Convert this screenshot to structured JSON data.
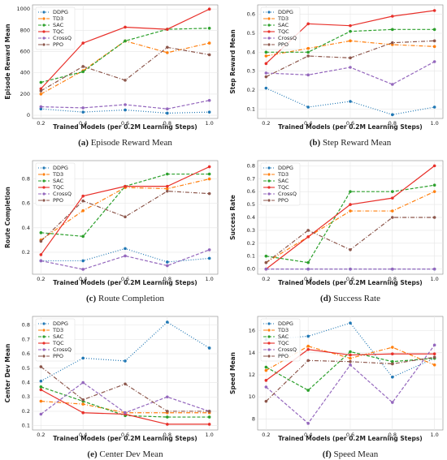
{
  "chart_data": [
    {
      "type": "line",
      "caption_label": "(a)",
      "caption": "Episode Reward Mean",
      "ylabel": "Episode Reward Mean",
      "xlabel": "Trained Models (per 0.2M Learning Steps)",
      "x": [
        0.2,
        0.4,
        0.6,
        0.8,
        1.0
      ],
      "xlim": [
        0.16,
        1.04
      ],
      "xticks": [
        0.2,
        0.4,
        0.6,
        0.8,
        {
          "value": 1.0,
          "label": "1.0"
        }
      ],
      "ylim": [
        -30,
        1040
      ],
      "yticks": [
        0,
        200,
        400,
        600,
        800,
        1000
      ],
      "grid": true,
      "legend": "upper left",
      "series": [
        {
          "name": "DDPG",
          "color": "#1f77b4",
          "linestyle": "dotted",
          "values": [
            60,
            30,
            50,
            20,
            30
          ]
        },
        {
          "name": "TD3",
          "color": "#ff7f0e",
          "linestyle": "dashdot",
          "values": [
            200,
            420,
            700,
            590,
            680
          ]
        },
        {
          "name": "SAC",
          "color": "#2ca02c",
          "linestyle": "dashed",
          "values": [
            310,
            410,
            700,
            810,
            820
          ]
        },
        {
          "name": "TQC",
          "color": "#e8302a",
          "linestyle": "solid",
          "values": [
            250,
            680,
            830,
            810,
            1000
          ]
        },
        {
          "name": "CrossQ",
          "color": "#9467bd",
          "linestyle": "dashed",
          "values": [
            80,
            70,
            100,
            60,
            140
          ]
        },
        {
          "name": "PPO",
          "color": "#8c564b",
          "linestyle": "dashdot",
          "values": [
            230,
            460,
            330,
            640,
            570
          ]
        }
      ]
    },
    {
      "type": "line",
      "caption_label": "(b)",
      "caption": "Step Reward Mean",
      "ylabel": "Step Reward Mean",
      "xlabel": "Trained Models (per 0.2M Learning Steps)",
      "x": [
        0.2,
        0.4,
        0.6,
        0.8,
        1.0
      ],
      "xlim": [
        0.16,
        1.04
      ],
      "xticks": [
        0.2,
        0.4,
        0.6,
        0.8,
        {
          "value": 1.0,
          "label": "1.0"
        }
      ],
      "ylim": [
        0.05,
        0.65
      ],
      "yticks": [
        0.1,
        0.2,
        0.3,
        0.4,
        0.5,
        0.6
      ],
      "grid": true,
      "legend": "upper left",
      "series": [
        {
          "name": "DDPG",
          "color": "#1f77b4",
          "linestyle": "dotted",
          "values": [
            0.21,
            0.11,
            0.14,
            0.07,
            0.11
          ]
        },
        {
          "name": "TD3",
          "color": "#ff7f0e",
          "linestyle": "dashdot",
          "values": [
            0.38,
            0.42,
            0.46,
            0.44,
            0.43
          ]
        },
        {
          "name": "SAC",
          "color": "#2ca02c",
          "linestyle": "dashed",
          "values": [
            0.4,
            0.4,
            0.51,
            0.52,
            0.52
          ]
        },
        {
          "name": "TQC",
          "color": "#e8302a",
          "linestyle": "solid",
          "values": [
            0.34,
            0.55,
            0.54,
            0.59,
            0.62
          ]
        },
        {
          "name": "CrossQ",
          "color": "#9467bd",
          "linestyle": "dashed",
          "values": [
            0.29,
            0.28,
            0.32,
            0.23,
            0.35
          ]
        },
        {
          "name": "PPO",
          "color": "#8c564b",
          "linestyle": "dashdot",
          "values": [
            0.27,
            0.38,
            0.37,
            0.45,
            0.46
          ]
        }
      ]
    },
    {
      "type": "line",
      "caption_label": "(c)",
      "caption": "Route Completion",
      "ylabel": "Route Completion",
      "xlabel": "Trained Models (per 0.2M Learning Steps)",
      "x": [
        0.2,
        0.4,
        0.6,
        0.8,
        1.0
      ],
      "xlim": [
        0.16,
        1.04
      ],
      "xticks": [
        0.2,
        0.4,
        0.6,
        0.8,
        {
          "value": 1.0,
          "label": "1.0"
        }
      ],
      "ylim": [
        0.02,
        0.95
      ],
      "yticks": [
        0.2,
        0.4,
        0.6,
        0.8
      ],
      "grid": true,
      "legend": "upper left",
      "series": [
        {
          "name": "DDPG",
          "color": "#1f77b4",
          "linestyle": "dotted",
          "values": [
            0.13,
            0.13,
            0.23,
            0.12,
            0.15
          ]
        },
        {
          "name": "TD3",
          "color": "#ff7f0e",
          "linestyle": "dashdot",
          "values": [
            0.3,
            0.54,
            0.73,
            0.72,
            0.8
          ]
        },
        {
          "name": "SAC",
          "color": "#2ca02c",
          "linestyle": "dashed",
          "values": [
            0.36,
            0.33,
            0.74,
            0.84,
            0.84
          ]
        },
        {
          "name": "TQC",
          "color": "#e8302a",
          "linestyle": "solid",
          "values": [
            0.18,
            0.66,
            0.74,
            0.74,
            0.9
          ]
        },
        {
          "name": "CrossQ",
          "color": "#9467bd",
          "linestyle": "dashed",
          "values": [
            0.13,
            0.06,
            0.17,
            0.09,
            0.22
          ]
        },
        {
          "name": "PPO",
          "color": "#8c564b",
          "linestyle": "dashdot",
          "values": [
            0.29,
            0.62,
            0.49,
            0.7,
            0.68
          ]
        }
      ]
    },
    {
      "type": "line",
      "caption_label": "(d)",
      "caption": "Success Rate",
      "ylabel": "Success Rate",
      "xlabel": "Trained Models (per 0.2M Learning Steps)",
      "x": [
        0.2,
        0.4,
        0.6,
        0.8,
        1.0
      ],
      "xlim": [
        0.16,
        1.04
      ],
      "xticks": [
        0.2,
        0.4,
        0.6,
        0.8,
        {
          "value": 1.0,
          "label": "1.0"
        }
      ],
      "ylim": [
        -0.04,
        0.84
      ],
      "yticks": [
        {
          "value": 0,
          "label": "0.0"
        },
        0.1,
        0.2,
        0.3,
        0.4,
        0.5,
        0.6,
        0.7,
        0.8
      ],
      "grid": true,
      "legend": "upper left",
      "series": [
        {
          "name": "DDPG",
          "color": "#1f77b4",
          "linestyle": "dotted",
          "values": [
            0,
            0,
            0,
            0,
            0
          ]
        },
        {
          "name": "TD3",
          "color": "#ff7f0e",
          "linestyle": "dashdot",
          "values": [
            0.05,
            0.25,
            0.45,
            0.45,
            0.6
          ]
        },
        {
          "name": "SAC",
          "color": "#2ca02c",
          "linestyle": "dashed",
          "values": [
            0.1,
            0.05,
            0.6,
            0.6,
            0.65
          ]
        },
        {
          "name": "TQC",
          "color": "#e8302a",
          "linestyle": "solid",
          "values": [
            0,
            0.25,
            0.5,
            0.55,
            0.8
          ]
        },
        {
          "name": "CrossQ",
          "color": "#9467bd",
          "linestyle": "dashed",
          "values": [
            0,
            0,
            0,
            0,
            0
          ]
        },
        {
          "name": "PPO",
          "color": "#8c564b",
          "linestyle": "dashdot",
          "values": [
            0.05,
            0.3,
            0.15,
            0.4,
            0.4
          ]
        }
      ]
    },
    {
      "type": "line",
      "caption_label": "(e)",
      "caption": "Center Dev Mean",
      "ylabel": "Center Dev Mean",
      "xlabel": "Trained Models (per 0.2M Learning Steps)",
      "x": [
        0.2,
        0.4,
        0.6,
        0.8,
        1.0
      ],
      "xlim": [
        0.16,
        1.04
      ],
      "xticks": [
        0.2,
        0.4,
        0.6,
        0.8,
        {
          "value": 1.0,
          "label": "1.0"
        }
      ],
      "ylim": [
        0.07,
        0.86
      ],
      "yticks": [
        0.1,
        0.2,
        0.3,
        0.4,
        0.5,
        0.6,
        0.7,
        0.8
      ],
      "grid": true,
      "legend": "upper left",
      "series": [
        {
          "name": "DDPG",
          "color": "#1f77b4",
          "linestyle": "dotted",
          "values": [
            0.41,
            0.57,
            0.55,
            0.82,
            0.64
          ]
        },
        {
          "name": "TD3",
          "color": "#ff7f0e",
          "linestyle": "dashdot",
          "values": [
            0.27,
            0.25,
            0.19,
            0.19,
            0.19
          ]
        },
        {
          "name": "SAC",
          "color": "#2ca02c",
          "linestyle": "dashed",
          "values": [
            0.37,
            0.27,
            0.17,
            0.16,
            0.16
          ]
        },
        {
          "name": "TQC",
          "color": "#e8302a",
          "linestyle": "solid",
          "values": [
            0.35,
            0.19,
            0.18,
            0.11,
            0.11
          ]
        },
        {
          "name": "CrossQ",
          "color": "#9467bd",
          "linestyle": "dashed",
          "values": [
            0.18,
            0.4,
            0.19,
            0.3,
            0.2
          ]
        },
        {
          "name": "PPO",
          "color": "#8c564b",
          "linestyle": "dashdot",
          "values": [
            0.51,
            0.28,
            0.39,
            0.2,
            0.2
          ]
        }
      ]
    },
    {
      "type": "line",
      "caption_label": "(f)",
      "caption": "Speed Mean",
      "ylabel": "Speed Mean",
      "xlabel": "Trained Models (per 0.2M Learning Steps)",
      "x": [
        0.2,
        0.4,
        0.6,
        0.8,
        1.0
      ],
      "xlim": [
        0.16,
        1.04
      ],
      "xticks": [
        0.2,
        0.4,
        0.6,
        0.8,
        {
          "value": 1.0,
          "label": "1.0"
        }
      ],
      "ylim": [
        7,
        17.3
      ],
      "yticks": [
        8,
        10,
        12,
        14,
        16
      ],
      "grid": true,
      "legend": "upper left",
      "series": [
        {
          "name": "DDPG",
          "color": "#1f77b4",
          "linestyle": "dotted",
          "values": [
            15.2,
            15.5,
            16.7,
            11.8,
            13.5
          ]
        },
        {
          "name": "TD3",
          "color": "#ff7f0e",
          "linestyle": "dashdot",
          "values": [
            12.4,
            14.6,
            13.5,
            14.5,
            12.9
          ]
        },
        {
          "name": "SAC",
          "color": "#2ca02c",
          "linestyle": "dashed",
          "values": [
            12.7,
            10.6,
            14.1,
            13.2,
            13.5
          ]
        },
        {
          "name": "TQC",
          "color": "#e8302a",
          "linestyle": "solid",
          "values": [
            11.5,
            14.3,
            13.8,
            13.9,
            13.9
          ]
        },
        {
          "name": "CrossQ",
          "color": "#9467bd",
          "linestyle": "dashed",
          "values": [
            10.9,
            7.6,
            12.9,
            9.5,
            14.7
          ]
        },
        {
          "name": "PPO",
          "color": "#8c564b",
          "linestyle": "dashdot",
          "values": [
            9.6,
            13.3,
            13.2,
            13.0,
            13.6
          ]
        }
      ]
    }
  ]
}
